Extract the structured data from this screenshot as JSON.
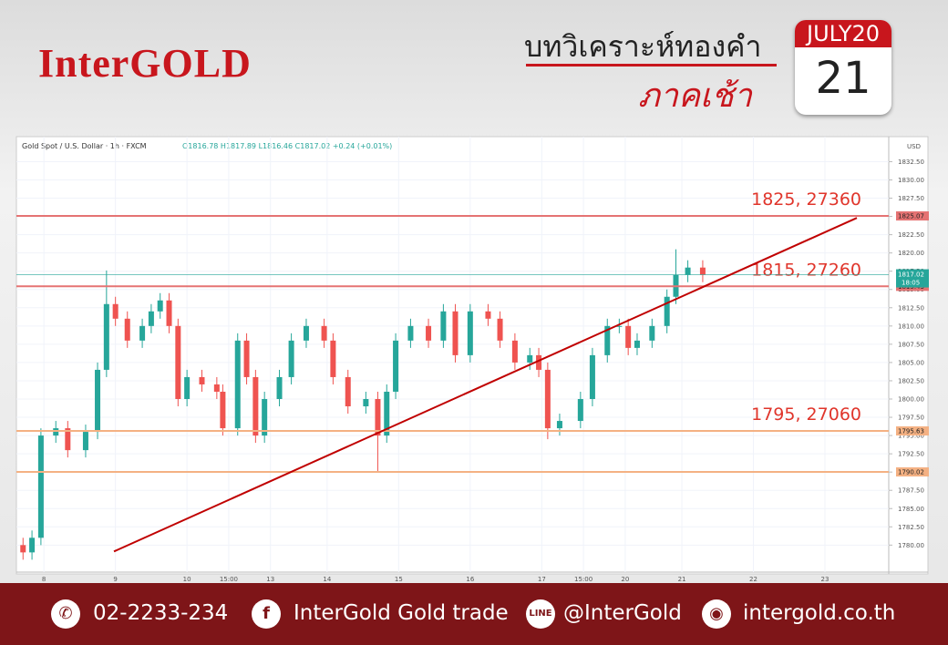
{
  "header": {
    "brand": "InterGOLD",
    "title": "บทวิเคราะห์ทองคำ",
    "subtitle": "ภาคเช้า",
    "month": "JULY20",
    "day": "21"
  },
  "chart_data": {
    "type": "candlestick",
    "title": "Gold Spot / U.S. Dollar · 1h · FXCM",
    "ohlc_text": "O1816.78 H1817.89 L1816.46 C1817.02 +0.24 (+0.01%)",
    "currency": "USD",
    "x": [
      1,
      4,
      7,
      12,
      16,
      22,
      26,
      29,
      32,
      36,
      41,
      44,
      47,
      50,
      53,
      56,
      61,
      66,
      68,
      73,
      76,
      79,
      82,
      87,
      91,
      96,
      102,
      105,
      110,
      116,
      120,
      123,
      126,
      131,
      137,
      142,
      146,
      151,
      157,
      161,
      166,
      171,
      174,
      177,
      181,
      188,
      192,
      197,
      201,
      204,
      207,
      212,
      217,
      220,
      224,
      229
    ],
    "open": [
      1780,
      1779,
      1781,
      1795,
      1796,
      1793,
      1795.5,
      1804,
      1813,
      1811,
      1808,
      1810,
      1812,
      1813.5,
      1810,
      1800,
      1803,
      1802,
      1801,
      1796,
      1808,
      1803,
      1795,
      1800,
      1803,
      1808,
      1810,
      1808,
      1803,
      1799,
      1800,
      1795,
      1801,
      1808,
      1810,
      1808,
      1812,
      1806,
      1812,
      1811,
      1808,
      1805,
      1806,
      1804,
      1796,
      1797,
      1800,
      1806,
      1810,
      1810,
      1807,
      1808,
      1810,
      1814,
      1817,
      1818
    ],
    "high": [
      1781,
      1782,
      1796,
      1797,
      1797,
      1796.5,
      1805,
      1817.6,
      1814,
      1812,
      1811,
      1813,
      1814.5,
      1814.5,
      1811,
      1804,
      1804,
      1803,
      1802,
      1809,
      1809,
      1804,
      1801,
      1804,
      1809,
      1811,
      1811,
      1809,
      1804,
      1801,
      1801,
      1802,
      1809,
      1811,
      1811,
      1813,
      1813,
      1813,
      1813,
      1812,
      1809,
      1807,
      1807,
      1805,
      1798,
      1801,
      1807,
      1811,
      1811,
      1811,
      1809,
      1811,
      1815,
      1820.5,
      1819,
      1819
    ],
    "low": [
      1778,
      1778,
      1780,
      1794,
      1792,
      1792,
      1794.5,
      1803,
      1810,
      1807,
      1807,
      1809,
      1811,
      1809,
      1799,
      1799,
      1801,
      1800,
      1795,
      1795,
      1802,
      1794,
      1794,
      1799,
      1802,
      1807,
      1807,
      1802,
      1798,
      1798,
      1790,
      1794,
      1800,
      1807,
      1807,
      1807,
      1805,
      1805,
      1810,
      1807,
      1804,
      1804,
      1803,
      1794.5,
      1795,
      1796,
      1799,
      1805,
      1809,
      1806,
      1806,
      1807,
      1809,
      1813,
      1816,
      1816
    ],
    "close": [
      1779,
      1781,
      1795,
      1796,
      1793,
      1795.5,
      1804,
      1813,
      1811,
      1808,
      1810,
      1812,
      1813.5,
      1810,
      1800,
      1803,
      1802,
      1801,
      1796,
      1808,
      1803,
      1795,
      1800,
      1803,
      1808,
      1810,
      1808,
      1803,
      1799,
      1800,
      1795,
      1801,
      1808,
      1810,
      1808,
      1812,
      1806,
      1812,
      1811,
      1808,
      1805,
      1806,
      1804,
      1796,
      1797,
      1800,
      1806,
      1810,
      1810,
      1807,
      1808,
      1810,
      1814,
      1817,
      1818,
      1817.02
    ],
    "up_color": "#26a69a",
    "down_color": "#ef5350",
    "xlim": [
      0,
      291.4
    ],
    "xticks": [
      {
        "value": 8,
        "label": "8"
      },
      {
        "value": 32,
        "label": "9"
      },
      {
        "value": 56,
        "label": "10"
      },
      {
        "value": 70,
        "label": "15:00"
      },
      {
        "value": 84,
        "label": "13"
      },
      {
        "value": 103,
        "label": "14"
      },
      {
        "value": 127,
        "label": "15"
      },
      {
        "value": 151,
        "label": "16"
      },
      {
        "value": 175,
        "label": "17"
      },
      {
        "value": 189,
        "label": "15:00"
      },
      {
        "value": 203,
        "label": "20"
      },
      {
        "value": 222,
        "label": "21"
      },
      {
        "value": 246,
        "label": "22"
      },
      {
        "value": 270,
        "label": "23"
      }
    ],
    "ylim": [
      1776.3,
      1835.3
    ],
    "yticks": [
      {
        "value": 1780,
        "label": "1780.00"
      },
      {
        "value": 1782.5,
        "label": "1782.50"
      },
      {
        "value": 1785,
        "label": "1785.00"
      },
      {
        "value": 1787.5,
        "label": "1787.50"
      },
      {
        "value": 1790,
        "label": "1790.00"
      },
      {
        "value": 1792.5,
        "label": "1792.50"
      },
      {
        "value": 1795,
        "label": "1795.00"
      },
      {
        "value": 1797.5,
        "label": "1797.50"
      },
      {
        "value": 1800,
        "label": "1800.00"
      },
      {
        "value": 1802.5,
        "label": "1802.50"
      },
      {
        "value": 1805,
        "label": "1805.00"
      },
      {
        "value": 1807.5,
        "label": "1807.50"
      },
      {
        "value": 1810,
        "label": "1810.00"
      },
      {
        "value": 1812.5,
        "label": "1812.50"
      },
      {
        "value": 1815,
        "label": "1815.00"
      },
      {
        "value": 1817.5,
        "label": "1817.50"
      },
      {
        "value": 1820,
        "label": "1820.00"
      },
      {
        "value": 1822.5,
        "label": "1822.50"
      },
      {
        "value": 1825,
        "label": "1825.00"
      },
      {
        "value": 1827.5,
        "label": "1827.50"
      },
      {
        "value": 1830,
        "label": "1830.00"
      },
      {
        "value": 1832.5,
        "label": "1832.50"
      }
    ],
    "levels": [
      {
        "value": 1825.07,
        "color": "#e57373",
        "note": "1825, 27360"
      },
      {
        "value": 1815.43,
        "color": "#e57373",
        "note": "1815, 27260"
      },
      {
        "value": 1795.63,
        "color": "#f4b183",
        "note": "1795, 27060"
      },
      {
        "value": 1790.02,
        "color": "#f4b183"
      }
    ],
    "last": {
      "value": 1817.02,
      "time": "18:05",
      "color": "#26a69a"
    },
    "trendline": {
      "x": [
        31.5,
        280.7
      ],
      "y": [
        1779.13,
        1824.8
      ],
      "color": "#c00000"
    }
  },
  "footer": {
    "phone": "02-2233-234",
    "facebook": "InterGold Gold trade",
    "line": "@InterGold",
    "web": "intergold.co.th"
  }
}
